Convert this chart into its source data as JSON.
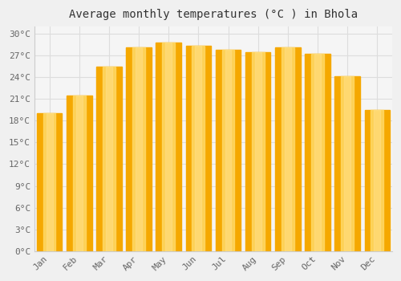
{
  "title": "Average monthly temperatures (°C ) in Bhola",
  "months": [
    "Jan",
    "Feb",
    "Mar",
    "Apr",
    "May",
    "Jun",
    "Jul",
    "Aug",
    "Sep",
    "Oct",
    "Nov",
    "Dec"
  ],
  "temperatures": [
    19.0,
    21.5,
    25.5,
    28.1,
    28.8,
    28.4,
    27.8,
    27.5,
    28.1,
    27.2,
    24.1,
    19.5
  ],
  "bar_color_center": "#FFD966",
  "bar_color_edge": "#F5A800",
  "bar_color_mid": "#FFC125",
  "ylim": [
    0,
    31
  ],
  "ytick_step": 3,
  "background_color": "#f0f0f0",
  "plot_bg_color": "#f5f5f5",
  "grid_color": "#dddddd",
  "title_fontsize": 10,
  "tick_fontsize": 8,
  "font_family": "monospace"
}
